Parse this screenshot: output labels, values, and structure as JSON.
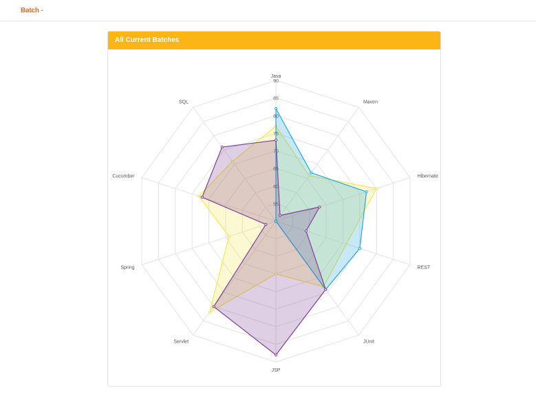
{
  "header": {
    "batch_menu_label": "Batch -"
  },
  "panel": {
    "title": "All Current Batches"
  },
  "colors": {
    "header_bg": "#fbb514",
    "batch_menu": "#f26522",
    "series_yellow": "#f5e94a",
    "series_blue": "#1fa8e0",
    "series_purple": "#7f3f98"
  },
  "chart_data": {
    "type": "radar",
    "axes": [
      "Java",
      "Maven",
      "Hibernate",
      "REST",
      "JUnit",
      "JSP",
      "Servlet",
      "Spring",
      "Cucumber",
      "SQL"
    ],
    "ticks": [
      "55",
      "60",
      "65",
      "70",
      "75",
      "80",
      "85",
      "90"
    ],
    "range": [
      50,
      90
    ],
    "grid": true,
    "series": [
      {
        "color": "#f5e94a",
        "values": [
          77,
          66,
          80,
          71,
          73,
          65,
          82,
          64,
          73,
          71
        ]
      },
      {
        "color": "#1fa8e0",
        "values": [
          82,
          67,
          77,
          75,
          74,
          50,
          50,
          50,
          50,
          50
        ]
      },
      {
        "color": "#7f3f98",
        "values": [
          73,
          52,
          63,
          59,
          74,
          88,
          80,
          53,
          72,
          76
        ]
      }
    ]
  }
}
